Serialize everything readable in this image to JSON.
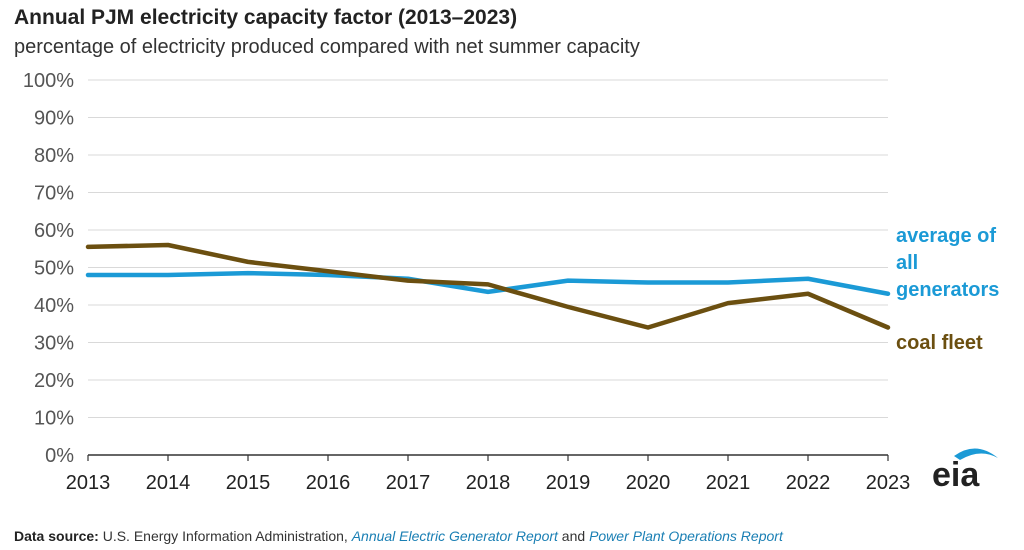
{
  "title": "Annual PJM electricity capacity factor (2013–2023)",
  "subtitle": "percentage of electricity produced compared with net summer capacity",
  "source": {
    "label": "Data source:",
    "text1": " U.S. Energy Information Administration, ",
    "report1": "Annual Electric Generator Report",
    "and": " and ",
    "report2": "Power Plant Operations Report"
  },
  "logo_text": "eia",
  "colors": {
    "blue": "#1b9ad6",
    "brown": "#6b4f10",
    "grid": "#d9d9d9"
  },
  "chart_data": {
    "type": "line",
    "title": "Annual PJM electricity capacity factor (2013–2023)",
    "subtitle": "percentage of electricity produced compared with net summer capacity",
    "x": [
      2013,
      2014,
      2015,
      2016,
      2017,
      2018,
      2019,
      2020,
      2021,
      2022,
      2023
    ],
    "x_tick_labels": [
      "2013",
      "2014",
      "2015",
      "2016",
      "2017",
      "2018",
      "2019",
      "2020",
      "2021",
      "2022",
      "2023"
    ],
    "y_tick_labels": [
      "0%",
      "10%",
      "20%",
      "30%",
      "40%",
      "50%",
      "60%",
      "70%",
      "80%",
      "90%",
      "100%"
    ],
    "ylim": [
      0,
      100
    ],
    "grid": true,
    "series": [
      {
        "name": "average of all generators",
        "label_lines": [
          "average of",
          "all",
          "generators"
        ],
        "color": "#1b9ad6",
        "values": [
          48,
          48,
          48.5,
          48,
          47,
          43.5,
          46.5,
          46,
          46,
          47,
          43
        ]
      },
      {
        "name": "coal fleet",
        "label_lines": [
          "coal fleet"
        ],
        "color": "#6b4f10",
        "values": [
          55.5,
          56,
          51.5,
          49,
          46.5,
          45.5,
          39.5,
          34,
          40.5,
          43,
          34
        ]
      }
    ]
  }
}
